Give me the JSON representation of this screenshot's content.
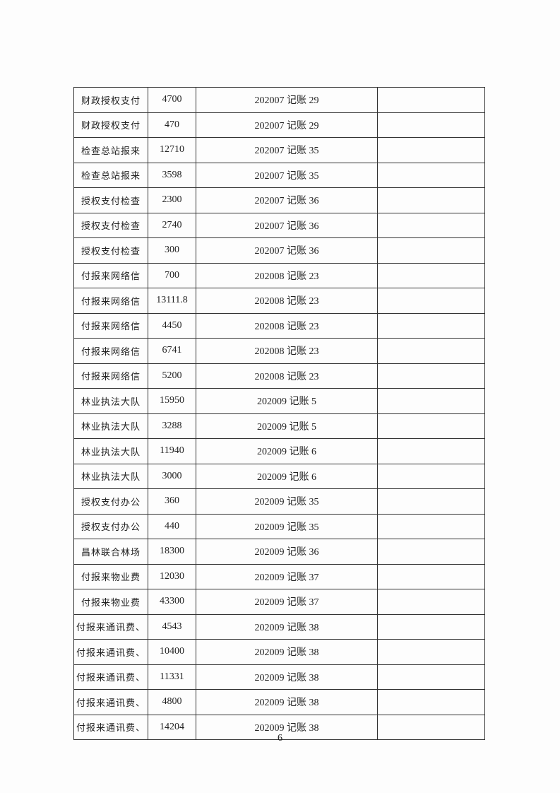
{
  "table": {
    "rows": [
      {
        "name": "财政授权支付",
        "amount": "4700",
        "voucher": "202007 记账 29",
        "note": ""
      },
      {
        "name": "财政授权支付",
        "amount": "470",
        "voucher": "202007 记账 29",
        "note": ""
      },
      {
        "name": "检查总站报来",
        "amount": "12710",
        "voucher": "202007 记账 35",
        "note": ""
      },
      {
        "name": "检查总站报来",
        "amount": "3598",
        "voucher": "202007 记账 35",
        "note": ""
      },
      {
        "name": "授权支付检查",
        "amount": "2300",
        "voucher": "202007 记账 36",
        "note": ""
      },
      {
        "name": "授权支付检查",
        "amount": "2740",
        "voucher": "202007 记账 36",
        "note": ""
      },
      {
        "name": "授权支付检查",
        "amount": "300",
        "voucher": "202007 记账 36",
        "note": ""
      },
      {
        "name": "付报来网络信",
        "amount": "700",
        "voucher": "202008 记账 23",
        "note": ""
      },
      {
        "name": "付报来网络信",
        "amount": "13111.8",
        "voucher": "202008 记账 23",
        "note": ""
      },
      {
        "name": "付报来网络信",
        "amount": "4450",
        "voucher": "202008 记账 23",
        "note": ""
      },
      {
        "name": "付报来网络信",
        "amount": "6741",
        "voucher": "202008 记账 23",
        "note": ""
      },
      {
        "name": "付报来网络信",
        "amount": "5200",
        "voucher": "202008 记账 23",
        "note": ""
      },
      {
        "name": "林业执法大队",
        "amount": "15950",
        "voucher": "202009 记账 5",
        "note": ""
      },
      {
        "name": "林业执法大队",
        "amount": "3288",
        "voucher": "202009 记账 5",
        "note": ""
      },
      {
        "name": "林业执法大队",
        "amount": "11940",
        "voucher": "202009 记账 6",
        "note": ""
      },
      {
        "name": "林业执法大队",
        "amount": "3000",
        "voucher": "202009 记账 6",
        "note": ""
      },
      {
        "name": "授权支付办公",
        "amount": "360",
        "voucher": "202009 记账 35",
        "note": ""
      },
      {
        "name": "授权支付办公",
        "amount": "440",
        "voucher": "202009 记账 35",
        "note": ""
      },
      {
        "name": "昌林联合林场",
        "amount": "18300",
        "voucher": "202009 记账 36",
        "note": ""
      },
      {
        "name": "付报来物业费",
        "amount": "12030",
        "voucher": "202009 记账 37",
        "note": ""
      },
      {
        "name": "付报来物业费",
        "amount": "43300",
        "voucher": "202009 记账 37",
        "note": ""
      },
      {
        "name": "付报来通讯费、",
        "amount": "4543",
        "voucher": "202009 记账 38",
        "note": ""
      },
      {
        "name": "付报来通讯费、",
        "amount": "10400",
        "voucher": "202009 记账 38",
        "note": ""
      },
      {
        "name": "付报来通讯费、",
        "amount": "11331",
        "voucher": "202009 记账 38",
        "note": ""
      },
      {
        "name": "付报来通讯费、",
        "amount": "4800",
        "voucher": "202009 记账 38",
        "note": ""
      },
      {
        "name": "付报来通讯费、",
        "amount": "14204",
        "voucher": "202009 记账 38",
        "note": ""
      }
    ]
  },
  "page_number": "6"
}
